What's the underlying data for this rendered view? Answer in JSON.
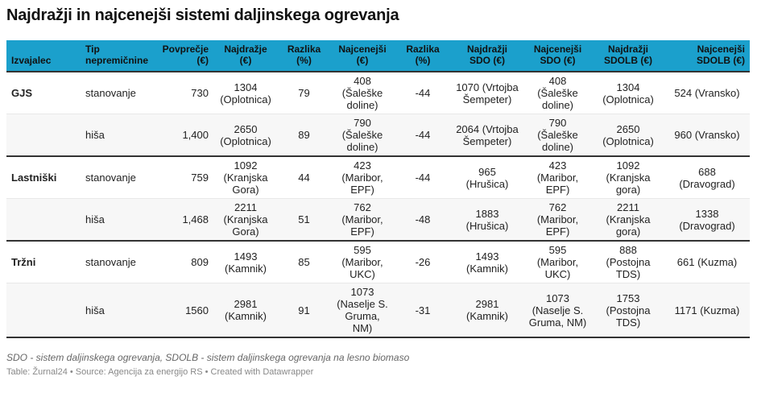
{
  "title": "Najdražji in najcenejši sistemi daljinskega ogrevanja",
  "columns": [
    "Izvajalec",
    "Tip nepremičnine",
    "Povprečje (€)",
    "Najdražje (€)",
    "Razlika (%)",
    "Najcenejši (€)",
    "Razlika (%)",
    "Najdražji SDO (€)",
    "Najcenejši SDO (€)",
    "Najdražji SDOLB (€)",
    "Najcenejši SDOLB (€)"
  ],
  "rows": [
    [
      "GJS",
      "stanovanje",
      "730",
      "1304 (Oplotnica)",
      "79",
      "408 (Šaleške doline)",
      "-44",
      "1070 (Vrtojba Šempeter)",
      "408 (Šaleške doline)",
      "1304 (Oplotnica)",
      "524 (Vransko)"
    ],
    [
      "",
      "hiša",
      "1,400",
      "2650 (Oplotnica)",
      "89",
      "790 (Šaleške doline)",
      "-44",
      "2064 (Vrtojba Šempeter)",
      "790 (Šaleške doline)",
      "2650 (Oplotnica)",
      "960 (Vransko)"
    ],
    [
      "Lastniški",
      "stanovanje",
      "759",
      "1092 (Kranjska Gora)",
      "44",
      "423 (Maribor, EPF)",
      "-44",
      "965 (Hrušica)",
      "423 (Maribor, EPF)",
      "1092 (Kranjska gora)",
      "688 (Dravograd)"
    ],
    [
      "",
      "hiša",
      "1,468",
      "2211 (Kranjska Gora)",
      "51",
      "762 (Maribor, EPF)",
      "-48",
      "1883 (Hrušica)",
      "762 (Maribor, EPF)",
      "2211 (Kranjska gora)",
      "1338 (Dravograd)"
    ],
    [
      "Tržni",
      "stanovanje",
      "809",
      "1493 (Kamnik)",
      "85",
      "595 (Maribor, UKC)",
      "-26",
      "1493 (Kamnik)",
      "595 (Maribor, UKC)",
      "888 (Postojna TDS)",
      "661 (Kuzma)"
    ],
    [
      "",
      "hiša",
      "1560",
      "2981 (Kamnik)",
      "91",
      "1073 (Naselje S. Gruma, NM)",
      "-31",
      "2981 (Kamnik)",
      "1073 (Naselje S. Gruma, NM)",
      "1753 (Postojna TDS)",
      "1171 (Kuzma)"
    ]
  ],
  "notes": "SDO - sistem daljinskega ogrevanja, SDOLB - sistem daljinskega ogrevanja na lesno biomaso",
  "source": "Table: Žurnal24 • Source: Agencija za energijo RS • Created with Datawrapper",
  "colors": {
    "header": "#1ba0cc",
    "alt_row": "#f7f7f7",
    "group_rule": "#333333"
  }
}
